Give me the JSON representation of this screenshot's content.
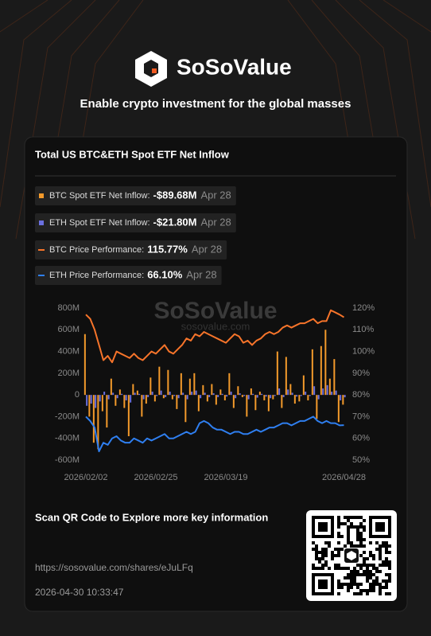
{
  "header": {
    "brand": "SoSoValue",
    "tagline": "Enable crypto investment for the global masses"
  },
  "chart_data": {
    "type": "combo",
    "title": "Total US BTC&ETH Spot ETF Net Inflow",
    "watermark": "SoSoValue",
    "watermark_url": "sosovalue.com",
    "categories": [
      "2026/02/02",
      null,
      null,
      null,
      null,
      null,
      null,
      null,
      null,
      null,
      null,
      null,
      null,
      null,
      null,
      null,
      "2026/02/25",
      null,
      null,
      null,
      null,
      null,
      null,
      null,
      null,
      null,
      null,
      null,
      null,
      null,
      null,
      null,
      "2026/03/19",
      null,
      null,
      null,
      null,
      null,
      null,
      null,
      null,
      null,
      null,
      null,
      null,
      null,
      null,
      null,
      null,
      null,
      null,
      null,
      null,
      null,
      null,
      null,
      null,
      null,
      null,
      "2026/04/28"
    ],
    "ylim": [
      -600,
      800
    ],
    "yticks": [
      {
        "value": -600,
        "label": "-600M"
      },
      {
        "value": -400,
        "label": "-400M"
      },
      {
        "value": -200,
        "label": "-200M"
      },
      0,
      {
        "value": 200,
        "label": "200M"
      },
      {
        "value": 400,
        "label": "400M"
      },
      {
        "value": 600,
        "label": "600M"
      },
      {
        "value": 800,
        "label": "800M"
      }
    ],
    "y2lim": [
      50,
      120
    ],
    "y2ticks": [
      {
        "value": 50,
        "label": "50%"
      },
      {
        "value": 60,
        "label": "60%"
      },
      {
        "value": 70,
        "label": "70%"
      },
      {
        "value": 80,
        "label": "80%"
      },
      {
        "value": 90,
        "label": "90%"
      },
      {
        "value": 100,
        "label": "100%"
      },
      {
        "value": 110,
        "label": "110%"
      },
      {
        "value": 120,
        "label": "120%"
      }
    ],
    "series": [
      {
        "name": "BTC Spot ETF Net Inflow:",
        "type": "bar",
        "color": "#f39a2b",
        "latest_label": "-$89.68M",
        "latest_date": "Apr 28",
        "values": [
          560,
          -200,
          -440,
          -500,
          -150,
          -300,
          150,
          -100,
          50,
          -120,
          -380,
          100,
          40,
          -200,
          -80,
          160,
          -60,
          260,
          -30,
          230,
          -40,
          -130,
          200,
          -250,
          150,
          200,
          -150,
          90,
          -60,
          100,
          -90,
          50,
          -50,
          200,
          -120,
          80,
          -20,
          -200,
          60,
          -140,
          30,
          -50,
          -150,
          -40,
          400,
          -120,
          350,
          100,
          -80,
          -60,
          180,
          -50,
          420,
          -220,
          450,
          600,
          150,
          330,
          -250,
          -89.68
        ]
      },
      {
        "name": "ETH Spot ETF Net Inflow:",
        "type": "bar",
        "color": "#6b70e0",
        "latest_label": "-$21.80M",
        "latest_date": "Apr 28",
        "values": [
          -100,
          -80,
          -120,
          -60,
          30,
          -40,
          20,
          -30,
          10,
          -50,
          -70,
          20,
          10,
          -40,
          -20,
          30,
          -10,
          40,
          -20,
          30,
          -10,
          -30,
          20,
          -40,
          30,
          40,
          -30,
          20,
          -20,
          15,
          -20,
          10,
          -15,
          30,
          -30,
          15,
          -10,
          -40,
          10,
          -25,
          10,
          -15,
          -30,
          -10,
          60,
          -20,
          50,
          20,
          -15,
          -10,
          30,
          -10,
          80,
          -40,
          60,
          90,
          30,
          40,
          -50,
          -21.8
        ]
      },
      {
        "name": "BTC Price Performance:",
        "type": "line",
        "axis": "y2",
        "color": "#f7742a",
        "latest_label": "115.77%",
        "latest_date": "Apr 28",
        "values": [
          117,
          115,
          110,
          103,
          96,
          98,
          95,
          100,
          99,
          98,
          97,
          99,
          97,
          96,
          98,
          100,
          99,
          101,
          103,
          100,
          99,
          101,
          103,
          106,
          105,
          108,
          107,
          109,
          108,
          107,
          106,
          105,
          104,
          106,
          108,
          107,
          104,
          105,
          103,
          105,
          106,
          108,
          109,
          108,
          109,
          111,
          112,
          111,
          112,
          113,
          113,
          114,
          115,
          113,
          114,
          114,
          119,
          118,
          117,
          115.77
        ]
      },
      {
        "name": "ETH Price Performance:",
        "type": "line",
        "axis": "y2",
        "color": "#2f7ff0",
        "latest_label": "66.10%",
        "latest_date": "Apr 28",
        "values": [
          70,
          68,
          65,
          54,
          58,
          57,
          60,
          61,
          59,
          58,
          58,
          60,
          59,
          58,
          60,
          59,
          60,
          61,
          62,
          60,
          60,
          61,
          62,
          63,
          62,
          63,
          67,
          68,
          67,
          65,
          64,
          64,
          63,
          62,
          63,
          63,
          62,
          62,
          63,
          64,
          63,
          64,
          65,
          65,
          66,
          67,
          67,
          66,
          67,
          68,
          68,
          69,
          70,
          68,
          67,
          68,
          67,
          67,
          66,
          66.1
        ]
      }
    ]
  },
  "footer": {
    "cta": "Scan QR Code to Explore more key information",
    "url": "https://sosovalue.com/shares/eJuLFq",
    "timestamp": "2026-04-30 10:33:47"
  }
}
